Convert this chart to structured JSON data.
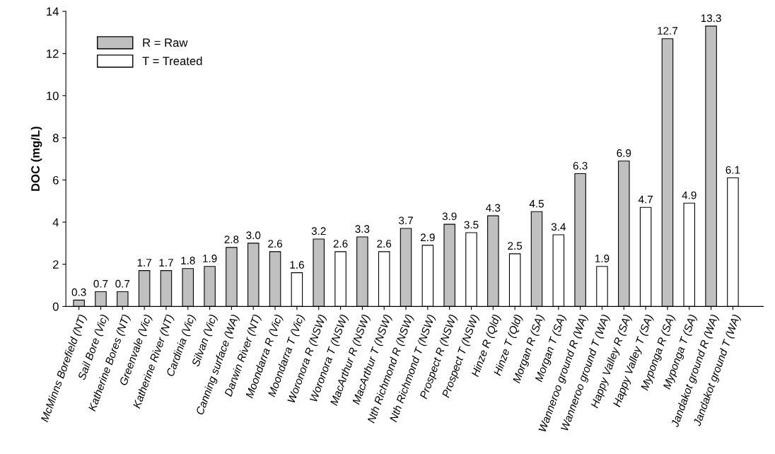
{
  "chart_data": {
    "type": "bar",
    "ylabel": "DOC (mg/L)",
    "ylim": [
      0,
      14
    ],
    "yticks": [
      0,
      2,
      4,
      6,
      8,
      10,
      12,
      14
    ],
    "grid": false,
    "legend": "top left",
    "categories": [
      "McMinns Borefield (NT)",
      "Sail Bore (Vic)",
      "Katherine Bores (NT)",
      "Greenvale (Vic)",
      "Katherine River (NT)",
      "Cardinia (Vic)",
      "Silvan (Vic)",
      "Canning surface (WA)",
      "Darwin River (NT)",
      "Moondarra R (Vic)",
      "Moondarra T (Vic)",
      "Woronora R (NSW)",
      "Woronora T (NSW)",
      "MacArthur R (NSW)",
      "MacArthur T (NSW)",
      "Nth Richmond R (NSW)",
      "Nth Richmond T (NSW)",
      "Prospect R (NSW)",
      "Prospect T (NSW)",
      "Hinze R (Qld)",
      "Hinze T (Qld)",
      "Morgan R (SA)",
      "Morgan T (SA)",
      "Wanneroo ground R (WA)",
      "Wanneroo ground T (WA)",
      "Happy Valley R (SA)",
      "Happy Valley T (SA)",
      "Myponga R (SA)",
      "Myponga T (SA)",
      "Jandakot ground R (WA)",
      "Jandakot ground T (WA)"
    ],
    "series": [
      {
        "name": "R = Raw",
        "color": "#c0c0c0",
        "values": [
          0.3,
          0.7,
          0.7,
          1.7,
          1.7,
          1.8,
          1.9,
          2.8,
          3.0,
          2.6,
          null,
          3.2,
          null,
          3.3,
          null,
          3.7,
          null,
          3.9,
          null,
          4.3,
          null,
          4.5,
          null,
          6.3,
          null,
          6.9,
          null,
          12.7,
          null,
          13.3,
          null
        ],
        "value_labels": [
          "0.3",
          "0.7",
          "0.7",
          "1.7",
          "1.7",
          "1.8",
          "1.9",
          "2.8",
          "3.0",
          "2.6",
          null,
          "3.2",
          null,
          "3.3",
          null,
          "3.7",
          null,
          "3.9",
          null,
          "4.3",
          null,
          "4.5",
          null,
          "6.3",
          null,
          "6.9",
          null,
          "12.7",
          null,
          "13.3",
          null
        ]
      },
      {
        "name": "T = Treated",
        "color": "#ffffff",
        "values": [
          null,
          null,
          null,
          null,
          null,
          null,
          null,
          null,
          null,
          null,
          1.6,
          null,
          2.6,
          null,
          2.6,
          null,
          2.9,
          null,
          3.5,
          null,
          2.5,
          null,
          3.4,
          null,
          1.9,
          null,
          4.7,
          null,
          4.9,
          null,
          6.1
        ],
        "value_labels": [
          null,
          null,
          null,
          null,
          null,
          null,
          null,
          null,
          null,
          null,
          "1.6",
          null,
          "2.6",
          null,
          "2.6",
          null,
          "2.9",
          null,
          "3.5",
          null,
          "2.5",
          null,
          "3.4",
          null,
          "1.9",
          null,
          "4.7",
          null,
          "4.9",
          null,
          "6.1"
        ]
      }
    ]
  }
}
